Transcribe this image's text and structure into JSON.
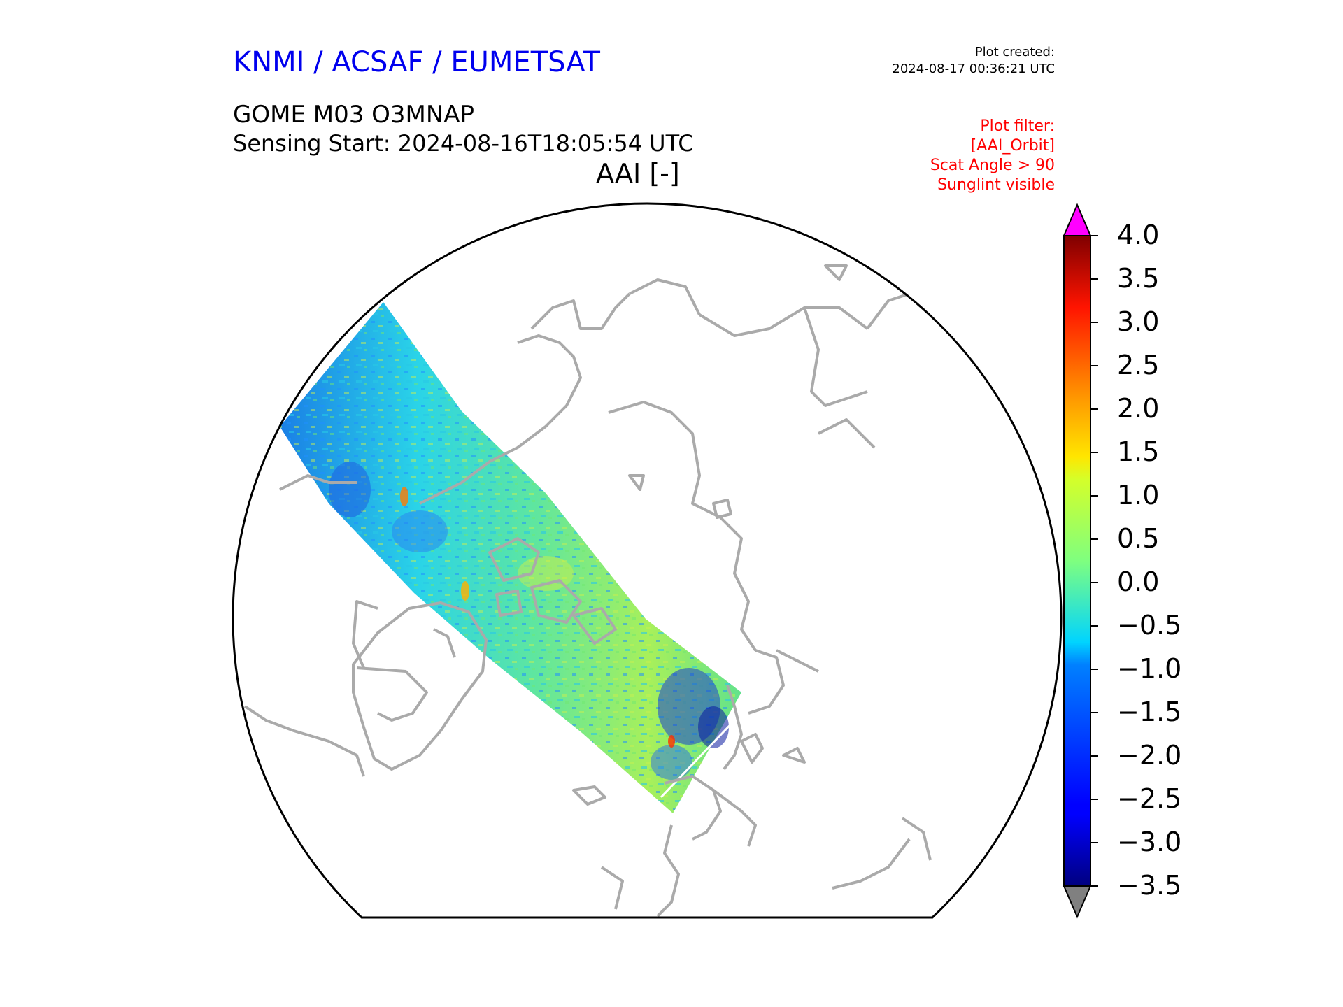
{
  "header": {
    "organisation": "KNMI / ACSAF / EUMETSAT",
    "organisation_color": "#0000ee",
    "plot_created_label": "Plot created:",
    "plot_created_time": "2024-08-17 00:36:21 UTC",
    "product": "GOME M03 O3MNAP",
    "sensing_start": "Sensing Start: 2024-08-16T18:05:54 UTC",
    "plot_title": "AAI [-]"
  },
  "filter": {
    "color": "#ff0000",
    "lines": [
      "Plot filter:",
      "[AAI_Orbit]",
      "Scat Angle > 90",
      "Sunglint visible"
    ]
  },
  "colorbar": {
    "colormap": "jet",
    "min": -3.5,
    "max": 4.0,
    "ticks": [
      "4.0",
      "3.5",
      "3.0",
      "2.5",
      "2.0",
      "1.5",
      "1.0",
      "0.5",
      "0.0",
      "−0.5",
      "−1.0",
      "−1.5",
      "−2.0",
      "−2.5",
      "−3.0",
      "−3.5"
    ],
    "over_color": "#ff00ff",
    "under_color": "#808080"
  },
  "map": {
    "projection": "north polar stereographic",
    "coastline_color": "#aaaaaa",
    "swath_typical_value_range": [
      -1.5,
      1.0
    ]
  }
}
